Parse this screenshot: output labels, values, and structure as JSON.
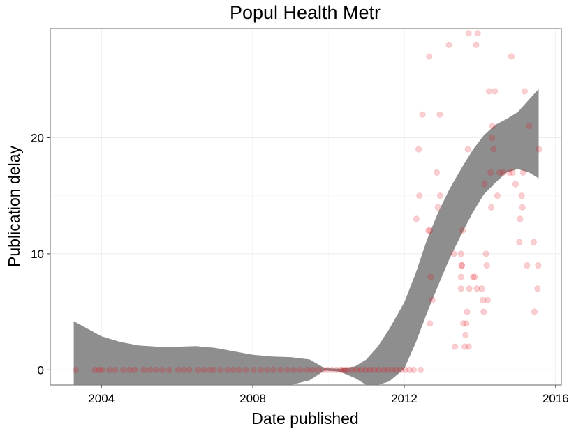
{
  "chart_data": {
    "type": "scatter",
    "title": "Popul Health Metr",
    "xlabel": "Date published",
    "ylabel": "Publication delay",
    "x_tick_labels": [
      "2004",
      "2008",
      "2012",
      "2016"
    ],
    "y_tick_labels": [
      "0",
      "10",
      "20"
    ],
    "x_ticks": [
      2004,
      2008,
      2012,
      2016
    ],
    "y_ticks": [
      0,
      10,
      20
    ],
    "xlim": [
      2002.65,
      2016.15
    ],
    "ylim": [
      -1.3,
      29.4
    ],
    "grid": true,
    "colors": {
      "points": "#e8111b",
      "band": "#8c8c8c",
      "grid_major": "#ebebeb",
      "grid_minor": "#f5f5f5",
      "border": "#7f7f7f"
    },
    "points": [
      {
        "x": 2003.32,
        "y": 0
      },
      {
        "x": 2003.83,
        "y": 0
      },
      {
        "x": 2003.94,
        "y": 0
      },
      {
        "x": 2004.02,
        "y": 0
      },
      {
        "x": 2004.21,
        "y": 0
      },
      {
        "x": 2004.36,
        "y": 0
      },
      {
        "x": 2004.58,
        "y": 0
      },
      {
        "x": 2004.75,
        "y": 0
      },
      {
        "x": 2004.88,
        "y": 0
      },
      {
        "x": 2005.12,
        "y": 0
      },
      {
        "x": 2005.29,
        "y": 0
      },
      {
        "x": 2005.45,
        "y": 0
      },
      {
        "x": 2005.61,
        "y": 0
      },
      {
        "x": 2005.79,
        "y": 0
      },
      {
        "x": 2006.03,
        "y": 0
      },
      {
        "x": 2006.18,
        "y": 0
      },
      {
        "x": 2006.32,
        "y": 0
      },
      {
        "x": 2006.55,
        "y": 0
      },
      {
        "x": 2006.71,
        "y": 0
      },
      {
        "x": 2006.86,
        "y": 0
      },
      {
        "x": 2006.97,
        "y": 0
      },
      {
        "x": 2007.15,
        "y": 0
      },
      {
        "x": 2007.33,
        "y": 0
      },
      {
        "x": 2007.48,
        "y": 0
      },
      {
        "x": 2007.64,
        "y": 0
      },
      {
        "x": 2007.82,
        "y": 0
      },
      {
        "x": 2008.02,
        "y": 0
      },
      {
        "x": 2008.21,
        "y": 0
      },
      {
        "x": 2008.38,
        "y": 0
      },
      {
        "x": 2008.55,
        "y": 0
      },
      {
        "x": 2008.73,
        "y": 0
      },
      {
        "x": 2008.91,
        "y": 0
      },
      {
        "x": 2009.08,
        "y": 0
      },
      {
        "x": 2009.26,
        "y": 0
      },
      {
        "x": 2009.44,
        "y": 0
      },
      {
        "x": 2009.58,
        "y": 0
      },
      {
        "x": 2009.72,
        "y": 0
      },
      {
        "x": 2009.86,
        "y": 0
      },
      {
        "x": 2009.97,
        "y": 0
      },
      {
        "x": 2010.09,
        "y": 0
      },
      {
        "x": 2010.21,
        "y": 0
      },
      {
        "x": 2010.32,
        "y": 0
      },
      {
        "x": 2010.38,
        "y": 0
      },
      {
        "x": 2010.44,
        "y": 0
      },
      {
        "x": 2010.51,
        "y": 0
      },
      {
        "x": 2010.62,
        "y": 0
      },
      {
        "x": 2010.74,
        "y": 0
      },
      {
        "x": 2010.86,
        "y": 0
      },
      {
        "x": 2010.98,
        "y": 0
      },
      {
        "x": 2011.09,
        "y": 0
      },
      {
        "x": 2011.21,
        "y": 0
      },
      {
        "x": 2011.33,
        "y": 0
      },
      {
        "x": 2011.45,
        "y": 0
      },
      {
        "x": 2011.56,
        "y": 0
      },
      {
        "x": 2011.68,
        "y": 0
      },
      {
        "x": 2011.79,
        "y": 0
      },
      {
        "x": 2011.91,
        "y": 0
      },
      {
        "x": 2012.03,
        "y": 0
      },
      {
        "x": 2012.14,
        "y": 0
      },
      {
        "x": 2012.25,
        "y": 0
      },
      {
        "x": 2012.43,
        "y": 0
      },
      {
        "x": 2012.32,
        "y": 13
      },
      {
        "x": 2012.38,
        "y": 19
      },
      {
        "x": 2012.4,
        "y": 15
      },
      {
        "x": 2012.48,
        "y": 22
      },
      {
        "x": 2012.66,
        "y": 27
      },
      {
        "x": 2012.64,
        "y": 12
      },
      {
        "x": 2012.68,
        "y": 12
      },
      {
        "x": 2012.7,
        "y": 8
      },
      {
        "x": 2012.68,
        "y": 4
      },
      {
        "x": 2012.74,
        "y": 6
      },
      {
        "x": 2012.86,
        "y": 17
      },
      {
        "x": 2012.89,
        "y": 14
      },
      {
        "x": 2012.94,
        "y": 22
      },
      {
        "x": 2012.95,
        "y": 15
      },
      {
        "x": 2013.18,
        "y": 28
      },
      {
        "x": 2013.31,
        "y": 10
      },
      {
        "x": 2013.34,
        "y": 2
      },
      {
        "x": 2013.5,
        "y": 10
      },
      {
        "x": 2013.52,
        "y": 9
      },
      {
        "x": 2013.5,
        "y": 8
      },
      {
        "x": 2013.5,
        "y": 7
      },
      {
        "x": 2013.52,
        "y": 9
      },
      {
        "x": 2013.54,
        "y": 12
      },
      {
        "x": 2013.56,
        "y": 4
      },
      {
        "x": 2013.6,
        "y": 2
      },
      {
        "x": 2013.62,
        "y": 3
      },
      {
        "x": 2013.64,
        "y": 4
      },
      {
        "x": 2013.66,
        "y": 5
      },
      {
        "x": 2013.7,
        "y": 2
      },
      {
        "x": 2013.72,
        "y": 7
      },
      {
        "x": 2013.68,
        "y": 19
      },
      {
        "x": 2013.7,
        "y": 29
      },
      {
        "x": 2013.82,
        "y": 8
      },
      {
        "x": 2013.86,
        "y": 8
      },
      {
        "x": 2013.9,
        "y": 28
      },
      {
        "x": 2013.94,
        "y": 29
      },
      {
        "x": 2013.92,
        "y": 7
      },
      {
        "x": 2014.05,
        "y": 7
      },
      {
        "x": 2014.08,
        "y": 6
      },
      {
        "x": 2014.1,
        "y": 5
      },
      {
        "x": 2014.12,
        "y": 16
      },
      {
        "x": 2014.16,
        "y": 10
      },
      {
        "x": 2014.18,
        "y": 9
      },
      {
        "x": 2014.2,
        "y": 6
      },
      {
        "x": 2014.24,
        "y": 24
      },
      {
        "x": 2014.28,
        "y": 17
      },
      {
        "x": 2014.3,
        "y": 14
      },
      {
        "x": 2014.32,
        "y": 20
      },
      {
        "x": 2014.33,
        "y": 21
      },
      {
        "x": 2014.36,
        "y": 19
      },
      {
        "x": 2014.39,
        "y": 24
      },
      {
        "x": 2014.46,
        "y": 15
      },
      {
        "x": 2014.52,
        "y": 17
      },
      {
        "x": 2014.62,
        "y": 17
      },
      {
        "x": 2014.78,
        "y": 17
      },
      {
        "x": 2014.83,
        "y": 27
      },
      {
        "x": 2014.86,
        "y": 17
      },
      {
        "x": 2014.94,
        "y": 16
      },
      {
        "x": 2015.04,
        "y": 11
      },
      {
        "x": 2015.06,
        "y": 13
      },
      {
        "x": 2015.1,
        "y": 15
      },
      {
        "x": 2015.12,
        "y": 14
      },
      {
        "x": 2015.14,
        "y": 17
      },
      {
        "x": 2015.18,
        "y": 24
      },
      {
        "x": 2015.24,
        "y": 9
      },
      {
        "x": 2015.3,
        "y": 21
      },
      {
        "x": 2015.42,
        "y": 11
      },
      {
        "x": 2015.44,
        "y": 5
      },
      {
        "x": 2015.52,
        "y": 7
      },
      {
        "x": 2015.54,
        "y": 9
      },
      {
        "x": 2015.56,
        "y": 19
      }
    ],
    "band": {
      "x": [
        2003.27,
        2004.0,
        2004.5,
        2005.0,
        2005.5,
        2006.0,
        2006.5,
        2007.0,
        2007.5,
        2008.0,
        2008.5,
        2009.0,
        2009.5,
        2009.9,
        2010.3,
        2010.7,
        2011.0,
        2011.3,
        2011.6,
        2012.0,
        2012.3,
        2012.6,
        2012.9,
        2013.2,
        2013.5,
        2013.8,
        2014.1,
        2014.4,
        2014.7,
        2015.0,
        2015.3,
        2015.55
      ],
      "upper": [
        4.2,
        2.9,
        2.4,
        2.1,
        2.0,
        2.0,
        2.05,
        1.9,
        1.6,
        1.3,
        1.15,
        1.1,
        0.9,
        0.15,
        0.1,
        0.3,
        0.9,
        2.0,
        3.5,
        5.8,
        8.3,
        11.2,
        13.6,
        15.6,
        17.3,
        18.9,
        20.2,
        21.1,
        21.6,
        22.2,
        23.3,
        24.2
      ],
      "lower": [
        -1.3,
        -1.3,
        -1.3,
        -1.3,
        -1.3,
        -1.3,
        -1.3,
        -1.3,
        -1.3,
        -1.3,
        -1.3,
        -1.3,
        -0.9,
        -0.05,
        -0.15,
        -0.7,
        -1.3,
        -1.3,
        -1.0,
        0.1,
        2.3,
        4.9,
        7.3,
        9.6,
        11.6,
        13.5,
        15.1,
        16.1,
        17.0,
        17.3,
        17.0,
        16.5
      ]
    }
  }
}
